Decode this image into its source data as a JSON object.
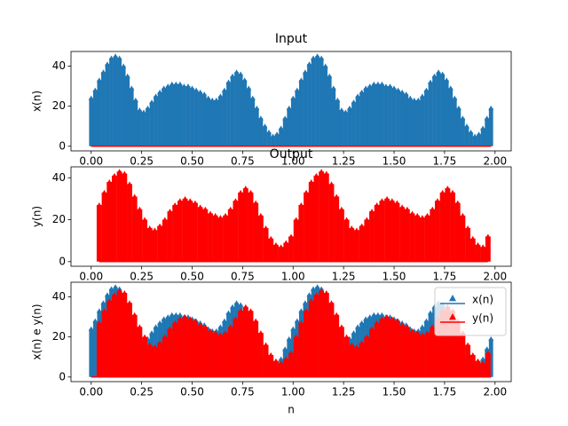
{
  "chart_data": [
    {
      "type": "stem",
      "title": "Input",
      "ylabel": "x(n)",
      "xlim": [
        -0.1,
        2.08
      ],
      "ylim": [
        -2.3,
        47.3
      ],
      "xticks": [
        {
          "value": 0,
          "label": "0.00"
        },
        {
          "value": 0.25,
          "label": "0.25"
        },
        {
          "value": 0.5,
          "label": "0.50"
        },
        {
          "value": 0.75,
          "label": "0.75"
        },
        {
          "value": 1,
          "label": "1.00"
        },
        {
          "value": 1.25,
          "label": "1.25"
        },
        {
          "value": 1.5,
          "label": "1.50"
        },
        {
          "value": 1.75,
          "label": "1.75"
        },
        {
          "value": 2,
          "label": "2.00"
        }
      ],
      "yticks": [
        0,
        20,
        40
      ],
      "baseline_color": "red",
      "series": [
        {
          "color": "#1f77b4",
          "x": [
            0,
            0.02,
            0.04,
            0.06,
            0.08,
            0.1,
            0.12,
            0.14,
            0.16,
            0.18,
            0.2,
            0.22,
            0.24,
            0.26,
            0.28,
            0.3,
            0.32,
            0.34,
            0.36,
            0.38,
            0.4,
            0.42,
            0.44,
            0.46,
            0.48,
            0.5,
            0.52,
            0.54,
            0.56,
            0.58,
            0.6,
            0.62,
            0.64,
            0.66,
            0.68,
            0.7,
            0.72,
            0.74,
            0.76,
            0.78,
            0.8,
            0.82,
            0.84,
            0.86,
            0.88,
            0.9,
            0.92,
            0.94,
            0.96,
            0.98,
            1,
            1.02,
            1.04,
            1.06,
            1.08,
            1.1,
            1.12,
            1.14,
            1.16,
            1.18,
            1.2,
            1.22,
            1.24,
            1.26,
            1.28,
            1.3,
            1.32,
            1.34,
            1.36,
            1.38,
            1.4,
            1.42,
            1.44,
            1.46,
            1.48,
            1.5,
            1.52,
            1.54,
            1.56,
            1.58,
            1.6,
            1.62,
            1.64,
            1.66,
            1.68,
            1.7,
            1.72,
            1.74,
            1.76,
            1.78,
            1.8,
            1.82,
            1.84,
            1.86,
            1.88,
            1.9,
            1.92,
            1.94,
            1.96,
            1.98
          ],
          "values": [
            24,
            28,
            33,
            37,
            41,
            44,
            45,
            44,
            40,
            35,
            29,
            23,
            18,
            17,
            19,
            22,
            25,
            27,
            29,
            30,
            31,
            31,
            31,
            30,
            30,
            29,
            28,
            27,
            26,
            24,
            23,
            23,
            25,
            28,
            32,
            35,
            37,
            36,
            33,
            29,
            24,
            19,
            14,
            10,
            7,
            5,
            6,
            9,
            14,
            19,
            24,
            28,
            33,
            37,
            41,
            44,
            45,
            44,
            40,
            35,
            29,
            23,
            18,
            17,
            19,
            22,
            25,
            27,
            29,
            30,
            31,
            31,
            31,
            30,
            30,
            29,
            28,
            27,
            26,
            24,
            23,
            23,
            25,
            28,
            32,
            35,
            37,
            36,
            33,
            29,
            24,
            19,
            14,
            10,
            7,
            5,
            6,
            9,
            14,
            19
          ]
        }
      ]
    },
    {
      "type": "stem",
      "title": "Output",
      "ylabel": "y(n)",
      "xlim": [
        -0.1,
        2.08
      ],
      "ylim": [
        -2.2,
        45.2
      ],
      "xticks": [
        {
          "value": 0,
          "label": "0.00"
        },
        {
          "value": 0.25,
          "label": "0.25"
        },
        {
          "value": 0.5,
          "label": "0.50"
        },
        {
          "value": 0.75,
          "label": "0.75"
        },
        {
          "value": 1,
          "label": "1.00"
        },
        {
          "value": 1.25,
          "label": "1.25"
        },
        {
          "value": 1.5,
          "label": "1.50"
        },
        {
          "value": 1.75,
          "label": "1.75"
        },
        {
          "value": 2,
          "label": "2.00"
        }
      ],
      "yticks": [
        0,
        20,
        40
      ],
      "baseline_color": "red",
      "series": [
        {
          "color": "red",
          "x": [
            0.04,
            0.065,
            0.09,
            0.115,
            0.14,
            0.165,
            0.19,
            0.215,
            0.24,
            0.265,
            0.29,
            0.315,
            0.34,
            0.365,
            0.39,
            0.415,
            0.44,
            0.465,
            0.49,
            0.515,
            0.54,
            0.565,
            0.59,
            0.615,
            0.64,
            0.665,
            0.69,
            0.715,
            0.74,
            0.765,
            0.79,
            0.815,
            0.84,
            0.865,
            0.89,
            0.915,
            0.94,
            0.965,
            0.99,
            1.015,
            1.04,
            1.065,
            1.09,
            1.115,
            1.14,
            1.165,
            1.19,
            1.215,
            1.24,
            1.265,
            1.29,
            1.315,
            1.34,
            1.365,
            1.39,
            1.415,
            1.44,
            1.465,
            1.49,
            1.515,
            1.54,
            1.565,
            1.59,
            1.615,
            1.64,
            1.665,
            1.69,
            1.715,
            1.74,
            1.765,
            1.79,
            1.815,
            1.84,
            1.865,
            1.89,
            1.915,
            1.94,
            1.965
          ],
          "values": [
            27,
            33,
            38,
            41,
            43,
            42,
            37,
            31,
            25,
            20,
            16,
            15,
            17,
            20,
            24,
            27,
            29,
            30,
            29,
            28,
            26,
            25,
            23,
            22,
            21,
            22,
            25,
            29,
            33,
            35,
            33,
            28,
            22,
            16,
            11,
            8,
            7,
            9,
            12,
            20,
            27,
            33,
            38,
            41,
            43,
            42,
            37,
            31,
            25,
            20,
            16,
            15,
            17,
            20,
            24,
            27,
            29,
            30,
            29,
            28,
            26,
            25,
            23,
            22,
            21,
            22,
            25,
            29,
            33,
            35,
            33,
            28,
            22,
            16,
            11,
            8,
            7,
            12
          ]
        }
      ]
    },
    {
      "type": "stem",
      "xlabel": "n",
      "ylabel": "x(n) e y(n)",
      "xlim": [
        -0.1,
        2.08
      ],
      "ylim": [
        -2.3,
        47.3
      ],
      "xticks": [
        {
          "value": 0,
          "label": "0.00"
        },
        {
          "value": 0.25,
          "label": "0.25"
        },
        {
          "value": 0.5,
          "label": "0.50"
        },
        {
          "value": 0.75,
          "label": "0.75"
        },
        {
          "value": 1,
          "label": "1.00"
        },
        {
          "value": 1.25,
          "label": "1.25"
        },
        {
          "value": 1.5,
          "label": "1.50"
        },
        {
          "value": 1.75,
          "label": "1.75"
        },
        {
          "value": 2,
          "label": "2.00"
        }
      ],
      "yticks": [
        0,
        20,
        40
      ],
      "baseline_color": "red",
      "legend": "upper right",
      "series": [
        {
          "name": "x(n)",
          "color": "#1f77b4",
          "x": [
            0,
            0.02,
            0.04,
            0.06,
            0.08,
            0.1,
            0.12,
            0.14,
            0.16,
            0.18,
            0.2,
            0.22,
            0.24,
            0.26,
            0.28,
            0.3,
            0.32,
            0.34,
            0.36,
            0.38,
            0.4,
            0.42,
            0.44,
            0.46,
            0.48,
            0.5,
            0.52,
            0.54,
            0.56,
            0.58,
            0.6,
            0.62,
            0.64,
            0.66,
            0.68,
            0.7,
            0.72,
            0.74,
            0.76,
            0.78,
            0.8,
            0.82,
            0.84,
            0.86,
            0.88,
            0.9,
            0.92,
            0.94,
            0.96,
            0.98,
            1,
            1.02,
            1.04,
            1.06,
            1.08,
            1.1,
            1.12,
            1.14,
            1.16,
            1.18,
            1.2,
            1.22,
            1.24,
            1.26,
            1.28,
            1.3,
            1.32,
            1.34,
            1.36,
            1.38,
            1.4,
            1.42,
            1.44,
            1.46,
            1.48,
            1.5,
            1.52,
            1.54,
            1.56,
            1.58,
            1.6,
            1.62,
            1.64,
            1.66,
            1.68,
            1.7,
            1.72,
            1.74,
            1.76,
            1.78,
            1.8,
            1.82,
            1.84,
            1.86,
            1.88,
            1.9,
            1.92,
            1.94,
            1.96,
            1.98
          ],
          "values": [
            24,
            28,
            33,
            37,
            41,
            44,
            45,
            44,
            40,
            35,
            29,
            23,
            18,
            17,
            19,
            22,
            25,
            27,
            29,
            30,
            31,
            31,
            31,
            30,
            30,
            29,
            28,
            27,
            26,
            24,
            23,
            23,
            25,
            28,
            32,
            35,
            37,
            36,
            33,
            29,
            24,
            19,
            14,
            10,
            7,
            5,
            6,
            9,
            14,
            19,
            24,
            28,
            33,
            37,
            41,
            44,
            45,
            44,
            40,
            35,
            29,
            23,
            18,
            17,
            19,
            22,
            25,
            27,
            29,
            30,
            31,
            31,
            31,
            30,
            30,
            29,
            28,
            27,
            26,
            24,
            23,
            23,
            25,
            28,
            32,
            35,
            37,
            36,
            33,
            29,
            24,
            19,
            14,
            10,
            7,
            5,
            6,
            9,
            14,
            19
          ]
        },
        {
          "name": "y(n)",
          "color": "red",
          "x": [
            0.04,
            0.065,
            0.09,
            0.115,
            0.14,
            0.165,
            0.19,
            0.215,
            0.24,
            0.265,
            0.29,
            0.315,
            0.34,
            0.365,
            0.39,
            0.415,
            0.44,
            0.465,
            0.49,
            0.515,
            0.54,
            0.565,
            0.59,
            0.615,
            0.64,
            0.665,
            0.69,
            0.715,
            0.74,
            0.765,
            0.79,
            0.815,
            0.84,
            0.865,
            0.89,
            0.915,
            0.94,
            0.965,
            0.99,
            1.015,
            1.04,
            1.065,
            1.09,
            1.115,
            1.14,
            1.165,
            1.19,
            1.215,
            1.24,
            1.265,
            1.29,
            1.315,
            1.34,
            1.365,
            1.39,
            1.415,
            1.44,
            1.465,
            1.49,
            1.515,
            1.54,
            1.565,
            1.59,
            1.615,
            1.64,
            1.665,
            1.69,
            1.715,
            1.74,
            1.765,
            1.79,
            1.815,
            1.84,
            1.865,
            1.89,
            1.915,
            1.94,
            1.965
          ],
          "values": [
            27,
            33,
            38,
            41,
            43,
            42,
            37,
            31,
            25,
            20,
            16,
            15,
            17,
            20,
            24,
            27,
            29,
            30,
            29,
            28,
            26,
            25,
            23,
            22,
            21,
            22,
            25,
            29,
            33,
            35,
            33,
            28,
            22,
            16,
            11,
            8,
            7,
            9,
            12,
            20,
            27,
            33,
            38,
            41,
            43,
            42,
            37,
            31,
            25,
            20,
            16,
            15,
            17,
            20,
            24,
            27,
            29,
            30,
            29,
            28,
            26,
            25,
            23,
            22,
            21,
            22,
            25,
            29,
            33,
            35,
            33,
            28,
            22,
            16,
            11,
            8,
            7,
            12
          ]
        }
      ]
    }
  ]
}
